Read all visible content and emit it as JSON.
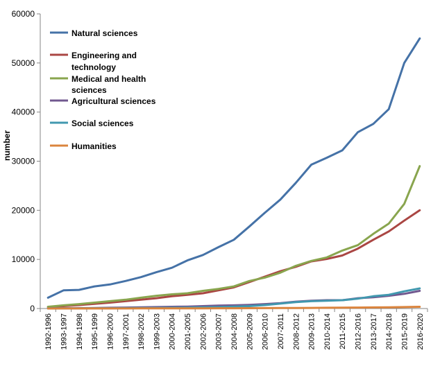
{
  "chart_data": {
    "type": "line",
    "title": "",
    "xlabel": "",
    "ylabel": "number",
    "ylim": [
      0,
      60000
    ],
    "yticks": [
      0,
      10000,
      20000,
      30000,
      40000,
      50000,
      60000
    ],
    "grid": false,
    "legend_position": "top-left",
    "categories": [
      "1992-1996",
      "1993-1997",
      "1994-1998",
      "1995-1999",
      "1996-2000",
      "1997-2001",
      "1998-2002",
      "1999-2003",
      "2000-2004",
      "2001-2005",
      "2002-2006",
      "2003-2007",
      "2004-2008",
      "2005-2009",
      "2006-2010",
      "2007-2011",
      "2008-2012",
      "2009-2013",
      "2010-2014",
      "2011-2015",
      "2012-2016",
      "2013-2017",
      "2014-2018",
      "2015-2019",
      "2016-2020"
    ],
    "series": [
      {
        "name": "Natural sciences",
        "color": "#4572A7",
        "values": [
          2200,
          3700,
          3800,
          4500,
          4900,
          5600,
          6400,
          7400,
          8300,
          9800,
          10900,
          12500,
          14000,
          16700,
          19500,
          22200,
          25600,
          29300,
          30700,
          32200,
          35900,
          37600,
          40600,
          50000,
          55000
        ]
      },
      {
        "name": "Engineering and technology",
        "color": "#AA4643",
        "values": [
          300,
          500,
          700,
          950,
          1200,
          1500,
          1800,
          2100,
          2500,
          2800,
          3100,
          3700,
          4300,
          5400,
          6500,
          7600,
          8500,
          9600,
          10100,
          10800,
          12200,
          14000,
          15700,
          17900,
          20000
        ]
      },
      {
        "name": "Medical and health sciences",
        "color": "#89A54E",
        "values": [
          350,
          650,
          900,
          1200,
          1500,
          1800,
          2200,
          2600,
          2900,
          3100,
          3600,
          4000,
          4500,
          5600,
          6300,
          7300,
          8700,
          9700,
          10400,
          11800,
          12900,
          15200,
          17300,
          21300,
          29000
        ]
      },
      {
        "name": "Agricultural sciences",
        "color": "#71588F",
        "values": [
          40,
          60,
          80,
          100,
          150,
          200,
          250,
          300,
          350,
          400,
          500,
          600,
          650,
          750,
          900,
          1100,
          1400,
          1600,
          1700,
          1700,
          2100,
          2300,
          2600,
          3000,
          3600
        ]
      },
      {
        "name": "Social sciences",
        "color": "#4198AF",
        "values": [
          20,
          30,
          40,
          50,
          60,
          80,
          100,
          130,
          160,
          200,
          250,
          300,
          400,
          500,
          700,
          1000,
          1300,
          1500,
          1600,
          1700,
          2000,
          2500,
          2800,
          3500,
          4100
        ]
      },
      {
        "name": "Humanities",
        "color": "#DB843D",
        "values": [
          5,
          10,
          10,
          15,
          20,
          20,
          25,
          30,
          35,
          40,
          45,
          50,
          60,
          70,
          80,
          100,
          110,
          130,
          150,
          170,
          200,
          230,
          250,
          300,
          350
        ]
      }
    ]
  }
}
